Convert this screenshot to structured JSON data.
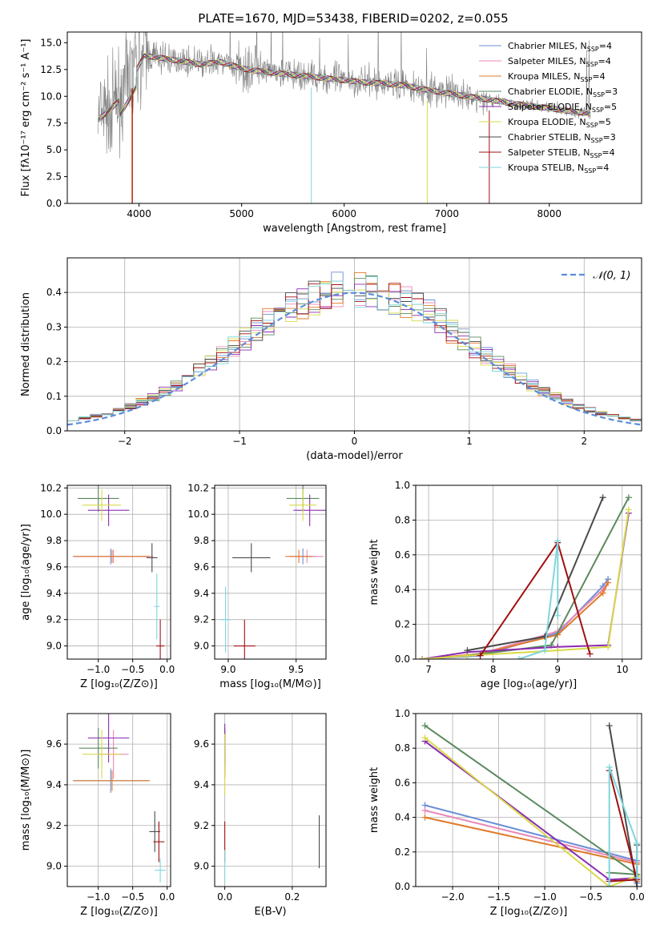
{
  "figure": {
    "title": "PLATE=1670, MJD=53438, FIBERID=0202, z=0.055"
  },
  "colors": {
    "chabrier_miles": "#6b8fd6",
    "salpeter_miles": "#e889b8",
    "kroupa_miles": "#e07b2a",
    "chabrier_elodie": "#5b8a5f",
    "salpeter_elodie": "#8a2bb0",
    "kroupa_elodie": "#d9d94a",
    "chabrier_stelib": "#4a4a4a",
    "salpeter_stelib": "#a01010",
    "kroupa_stelib": "#7fd6dc",
    "data_spectrum": "#808080",
    "normal_curve": "#5b8dd9"
  },
  "chart_data": [
    {
      "id": "spectrum",
      "type": "line",
      "xlabel": "wavelength [Angstrom, rest frame]",
      "ylabel": "Flux [fλ10⁻¹⁷ erg cm⁻² s⁻¹ A⁻¹]",
      "xlim": [
        3300,
        8900
      ],
      "ylim": [
        0,
        16
      ],
      "xticks": [
        4000,
        5000,
        6000,
        7000,
        8000
      ],
      "yticks": [
        0.0,
        2.5,
        5.0,
        7.5,
        10.0,
        12.5,
        15.0
      ],
      "legend_position": "top-right",
      "continuum_x": [
        3600,
        3800,
        3950,
        4050,
        4200,
        4400,
        4600,
        4800,
        5000,
        5200,
        5400,
        5600,
        5800,
        6000,
        6200,
        6400,
        6600,
        6800,
        7000,
        7200,
        7400,
        7600,
        7800,
        8000,
        8200,
        8400
      ],
      "continuum_y": [
        7.8,
        9.5,
        12.0,
        13.8,
        13.6,
        13.3,
        13.0,
        13.2,
        12.6,
        12.3,
        12.1,
        11.9,
        11.7,
        11.5,
        11.3,
        11.2,
        11.0,
        10.6,
        10.3,
        10.0,
        9.7,
        9.4,
        9.1,
        8.9,
        8.6,
        8.4
      ],
      "series": [
        {
          "name": "Chabrier MILES, N_SSP=4",
          "legend": "Chabrier MILES, N",
          "nssp": "=4",
          "color_key": "chabrier_miles"
        },
        {
          "name": "Salpeter MILES, N_SSP=4",
          "legend": "Salpeter MILES, N",
          "nssp": "=4",
          "color_key": "salpeter_miles"
        },
        {
          "name": "Kroupa MILES, N_SSP=4",
          "legend": "Kroupa MILES, N",
          "nssp": "=4",
          "color_key": "kroupa_miles"
        },
        {
          "name": "Chabrier ELODIE, N_SSP=3",
          "legend": "Chabrier ELODIE, N",
          "nssp": "=3",
          "color_key": "chabrier_elodie"
        },
        {
          "name": "Salpeter ELODIE, N_SSP=5",
          "legend": "Salpeter ELODIE, N",
          "nssp": "=5",
          "color_key": "salpeter_elodie"
        },
        {
          "name": "Kroupa ELODIE, N_SSP=5",
          "legend": "Kroupa ELODIE, N",
          "nssp": "=5",
          "color_key": "kroupa_elodie"
        },
        {
          "name": "Chabrier STELIB, N_SSP=3",
          "legend": "Chabrier STELIB, N",
          "nssp": "=3",
          "color_key": "chabrier_stelib"
        },
        {
          "name": "Salpeter STELIB, N_SSP=4",
          "legend": "Salpeter STELIB, N",
          "nssp": "=4",
          "color_key": "salpeter_stelib"
        },
        {
          "name": "Kroupa STELIB, N_SSP=4",
          "legend": "Kroupa STELIB, N",
          "nssp": "=4",
          "color_key": "kroupa_stelib"
        }
      ],
      "legend_sub": "SSP"
    },
    {
      "id": "residuals",
      "type": "line",
      "xlabel": "(data-model)/error",
      "ylabel": "Normed distribution",
      "xlim": [
        -2.5,
        2.5
      ],
      "ylim": [
        0,
        0.5
      ],
      "xticks": [
        -2,
        -1,
        0,
        1,
        2
      ],
      "yticks": [
        0.0,
        0.1,
        0.2,
        0.3,
        0.4
      ],
      "grid": true,
      "bin_width": 0.1,
      "normal_label": "𝒩(0, 1)",
      "legend_position": "top-right"
    },
    {
      "id": "age_vs_Z",
      "type": "scatter",
      "xlabel": "Z [log₁₀(Z/Z⊙)]",
      "ylabel": "age  [log₁₀(age/yr)]",
      "xlim": [
        -1.45,
        0.05
      ],
      "ylim": [
        8.9,
        10.22
      ],
      "xticks": [
        -1.0,
        -0.5,
        0.0
      ],
      "yticks": [
        9.0,
        9.2,
        9.4,
        9.6,
        9.8,
        10.0,
        10.2
      ],
      "grid": true,
      "points": [
        {
          "color_key": "chabrier_miles",
          "x": -0.82,
          "xerr": 0.55,
          "y": 9.68,
          "yerr": 0.06
        },
        {
          "color_key": "salpeter_miles",
          "x": -0.78,
          "xerr": 0.58,
          "y": 9.68,
          "yerr": 0.05
        },
        {
          "color_key": "kroupa_miles",
          "x": -0.8,
          "xerr": 0.55,
          "y": 9.68,
          "yerr": 0.05
        },
        {
          "color_key": "chabrier_elodie",
          "x": -1.0,
          "xerr": 0.3,
          "y": 10.12,
          "yerr": 0.1
        },
        {
          "color_key": "salpeter_elodie",
          "x": -0.85,
          "xerr": 0.3,
          "y": 10.03,
          "yerr": 0.12
        },
        {
          "color_key": "kroupa_elodie",
          "x": -0.95,
          "xerr": 0.28,
          "y": 10.07,
          "yerr": 0.12
        },
        {
          "color_key": "chabrier_stelib",
          "x": -0.22,
          "xerr": 0.08,
          "y": 9.67,
          "yerr": 0.11
        },
        {
          "color_key": "salpeter_stelib",
          "x": -0.1,
          "xerr": 0.06,
          "y": 9.0,
          "yerr": 0.2
        },
        {
          "color_key": "kroupa_stelib",
          "x": -0.15,
          "xerr": 0.04,
          "y": 9.3,
          "yerr": 0.25
        }
      ]
    },
    {
      "id": "age_vs_mass",
      "type": "scatter",
      "xlabel": "mass [log₁₀(M/M⊙)]",
      "ylabel": "",
      "xlim": [
        8.9,
        9.72
      ],
      "ylim": [
        8.9,
        10.22
      ],
      "xticks": [
        9.0,
        9.5
      ],
      "yticks": [
        9.0,
        9.2,
        9.4,
        9.6,
        9.8,
        10.0,
        10.2
      ],
      "grid": true,
      "points": [
        {
          "color_key": "chabrier_miles",
          "x": 9.55,
          "xerr": 0.1,
          "y": 9.68,
          "yerr": 0.06
        },
        {
          "color_key": "salpeter_miles",
          "x": 9.58,
          "xerr": 0.12,
          "y": 9.68,
          "yerr": 0.05
        },
        {
          "color_key": "kroupa_miles",
          "x": 9.52,
          "xerr": 0.1,
          "y": 9.68,
          "yerr": 0.05
        },
        {
          "color_key": "chabrier_elodie",
          "x": 9.55,
          "xerr": 0.12,
          "y": 10.12,
          "yerr": 0.1
        },
        {
          "color_key": "salpeter_elodie",
          "x": 9.6,
          "xerr": 0.12,
          "y": 10.03,
          "yerr": 0.12
        },
        {
          "color_key": "kroupa_elodie",
          "x": 9.55,
          "xerr": 0.1,
          "y": 10.07,
          "yerr": 0.12
        },
        {
          "color_key": "chabrier_stelib",
          "x": 9.17,
          "xerr": 0.14,
          "y": 9.67,
          "yerr": 0.11
        },
        {
          "color_key": "salpeter_stelib",
          "x": 9.12,
          "xerr": 0.08,
          "y": 9.0,
          "yerr": 0.2
        },
        {
          "color_key": "kroupa_stelib",
          "x": 8.98,
          "xerr": 0.04,
          "y": 9.2,
          "yerr": 0.25
        }
      ]
    },
    {
      "id": "massweight_vs_age",
      "type": "line",
      "xlabel": "age  [log₁₀(age/yr)]",
      "ylabel": "mass weight",
      "xlim": [
        6.8,
        10.3
      ],
      "ylim": [
        0,
        1
      ],
      "xticks": [
        7,
        8,
        9,
        10
      ],
      "yticks": [
        0.0,
        0.2,
        0.4,
        0.6,
        0.8,
        1.0
      ],
      "grid": true,
      "series": [
        {
          "color_key": "chabrier_miles",
          "x": [
            6.9,
            7.8,
            9.0,
            9.7,
            9.78
          ],
          "y": [
            0.0,
            0.02,
            0.15,
            0.42,
            0.46
          ]
        },
        {
          "color_key": "salpeter_miles",
          "x": [
            6.9,
            7.8,
            9.0,
            9.7,
            9.78
          ],
          "y": [
            0.0,
            0.03,
            0.16,
            0.4,
            0.44
          ]
        },
        {
          "color_key": "kroupa_miles",
          "x": [
            6.9,
            7.8,
            9.0,
            9.7,
            9.78
          ],
          "y": [
            0.0,
            0.03,
            0.14,
            0.38,
            0.44
          ]
        },
        {
          "color_key": "chabrier_elodie",
          "x": [
            7.6,
            8.9,
            10.1
          ],
          "y": [
            0.02,
            0.08,
            0.93
          ]
        },
        {
          "color_key": "salpeter_elodie",
          "x": [
            6.9,
            7.6,
            9.0,
            9.78,
            10.1
          ],
          "y": [
            0.0,
            0.04,
            0.07,
            0.08,
            0.84
          ]
        },
        {
          "color_key": "kroupa_elodie",
          "x": [
            6.9,
            7.6,
            9.0,
            9.78,
            10.1
          ],
          "y": [
            0.0,
            0.02,
            0.05,
            0.07,
            0.86
          ]
        },
        {
          "color_key": "chabrier_stelib",
          "x": [
            7.6,
            8.8,
            9.7
          ],
          "y": [
            0.05,
            0.13,
            0.93
          ]
        },
        {
          "color_key": "salpeter_stelib",
          "x": [
            7.8,
            9.0,
            9.5
          ],
          "y": [
            0.02,
            0.67,
            0.03
          ]
        },
        {
          "color_key": "kroupa_stelib",
          "x": [
            8.4,
            8.8,
            9.0,
            9.0
          ],
          "y": [
            0.0,
            0.05,
            0.68,
            0.25
          ]
        }
      ]
    },
    {
      "id": "mass_vs_Z",
      "type": "scatter",
      "xlabel": "Z [log₁₀(Z/Z⊙)]",
      "ylabel": "mass [log₁₀(M/M⊙)]",
      "xlim": [
        -1.45,
        0.05
      ],
      "ylim": [
        8.9,
        9.75
      ],
      "xticks": [
        -1.0,
        -0.5,
        0.0
      ],
      "yticks": [
        9.0,
        9.2,
        9.4,
        9.6
      ],
      "grid": true,
      "points": [
        {
          "color_key": "chabrier_miles",
          "x": -0.82,
          "xerr": 0.55,
          "y": 9.42,
          "yerr": 0.06
        },
        {
          "color_key": "salpeter_miles",
          "x": -0.78,
          "xerr": 0.22,
          "y": 9.55,
          "yerr": 0.12
        },
        {
          "color_key": "kroupa_miles",
          "x": -0.8,
          "xerr": 0.55,
          "y": 9.42,
          "yerr": 0.05
        },
        {
          "color_key": "chabrier_elodie",
          "x": -1.0,
          "xerr": 0.28,
          "y": 9.58,
          "yerr": 0.1
        },
        {
          "color_key": "salpeter_elodie",
          "x": -0.85,
          "xerr": 0.3,
          "y": 9.63,
          "yerr": 0.12
        },
        {
          "color_key": "kroupa_elodie",
          "x": -0.95,
          "xerr": 0.28,
          "y": 9.55,
          "yerr": 0.12
        },
        {
          "color_key": "chabrier_stelib",
          "x": -0.18,
          "xerr": 0.08,
          "y": 9.17,
          "yerr": 0.1
        },
        {
          "color_key": "salpeter_stelib",
          "x": -0.12,
          "xerr": 0.08,
          "y": 9.12,
          "yerr": 0.1
        },
        {
          "color_key": "kroupa_stelib",
          "x": -0.1,
          "xerr": 0.08,
          "y": 8.98,
          "yerr": 0.06
        }
      ]
    },
    {
      "id": "mass_vs_ebv",
      "type": "scatter",
      "xlabel": "E(B-V)",
      "ylabel": "",
      "xlim": [
        -0.03,
        0.3
      ],
      "ylim": [
        8.9,
        9.75
      ],
      "xticks": [
        0.0,
        0.2
      ],
      "yticks": [
        9.0,
        9.2,
        9.4,
        9.6
      ],
      "grid": true,
      "points": [
        {
          "color_key": "chabrier_miles",
          "x": 0.0,
          "xerr": 0,
          "y": 9.55,
          "yerr": 0.12
        },
        {
          "color_key": "salpeter_miles",
          "x": 0.0,
          "xerr": 0,
          "y": 9.55,
          "yerr": 0.12
        },
        {
          "color_key": "kroupa_miles",
          "x": 0.0,
          "xerr": 0,
          "y": 9.55,
          "yerr": 0.1
        },
        {
          "color_key": "chabrier_elodie",
          "x": 0.0,
          "xerr": 0,
          "y": 9.58,
          "yerr": 0.1
        },
        {
          "color_key": "salpeter_elodie",
          "x": 0.0,
          "xerr": 0,
          "y": 9.6,
          "yerr": 0.1
        },
        {
          "color_key": "kroupa_elodie",
          "x": 0.0,
          "xerr": 0,
          "y": 9.5,
          "yerr": 0.15
        },
        {
          "color_key": "chabrier_stelib",
          "x": 0.28,
          "xerr": 0,
          "y": 9.12,
          "yerr": 0.13
        },
        {
          "color_key": "salpeter_stelib",
          "x": 0.0,
          "xerr": 0,
          "y": 9.12,
          "yerr": 0.1
        },
        {
          "color_key": "kroupa_stelib",
          "x": 0.0,
          "xerr": 0,
          "y": 9.0,
          "yerr": 0.08
        }
      ]
    },
    {
      "id": "massweight_vs_Z",
      "type": "line",
      "xlabel": "Z [log₁₀(Z/Z⊙)]",
      "ylabel": "mass weight",
      "xlim": [
        -2.4,
        0.05
      ],
      "ylim": [
        0,
        1
      ],
      "xticks": [
        -2.0,
        -1.5,
        -1.0,
        -0.5,
        0.0
      ],
      "yticks": [
        0.0,
        0.2,
        0.4,
        0.6,
        0.8,
        1.0
      ],
      "grid": true,
      "series": [
        {
          "color_key": "chabrier_miles",
          "x": [
            -2.3,
            0.0,
            0.0
          ],
          "y": [
            0.47,
            0.15,
            0.02
          ]
        },
        {
          "color_key": "salpeter_miles",
          "x": [
            -2.3,
            0.0,
            0.0
          ],
          "y": [
            0.44,
            0.14,
            0.03
          ]
        },
        {
          "color_key": "kroupa_miles",
          "x": [
            -2.3,
            0.0,
            0.0
          ],
          "y": [
            0.4,
            0.13,
            0.03
          ]
        },
        {
          "color_key": "chabrier_elodie",
          "x": [
            -2.3,
            0.0,
            -0.3
          ],
          "y": [
            0.93,
            0.07,
            0.08
          ]
        },
        {
          "color_key": "salpeter_elodie",
          "x": [
            -2.3,
            -0.3,
            0.0
          ],
          "y": [
            0.84,
            0.04,
            0.05
          ]
        },
        {
          "color_key": "kroupa_elodie",
          "x": [
            -2.3,
            -0.3,
            0.0
          ],
          "y": [
            0.86,
            0.0,
            0.06
          ]
        },
        {
          "color_key": "chabrier_stelib",
          "x": [
            -0.3,
            0.0,
            0.0
          ],
          "y": [
            0.93,
            0.0,
            0.24
          ]
        },
        {
          "color_key": "salpeter_stelib",
          "x": [
            -0.3,
            0.0,
            -0.3
          ],
          "y": [
            0.03,
            0.04,
            0.67
          ]
        },
        {
          "color_key": "kroupa_stelib",
          "x": [
            -0.3,
            -0.3,
            0.0,
            0.0
          ],
          "y": [
            0.0,
            0.69,
            0.25,
            0.05
          ]
        }
      ]
    }
  ]
}
